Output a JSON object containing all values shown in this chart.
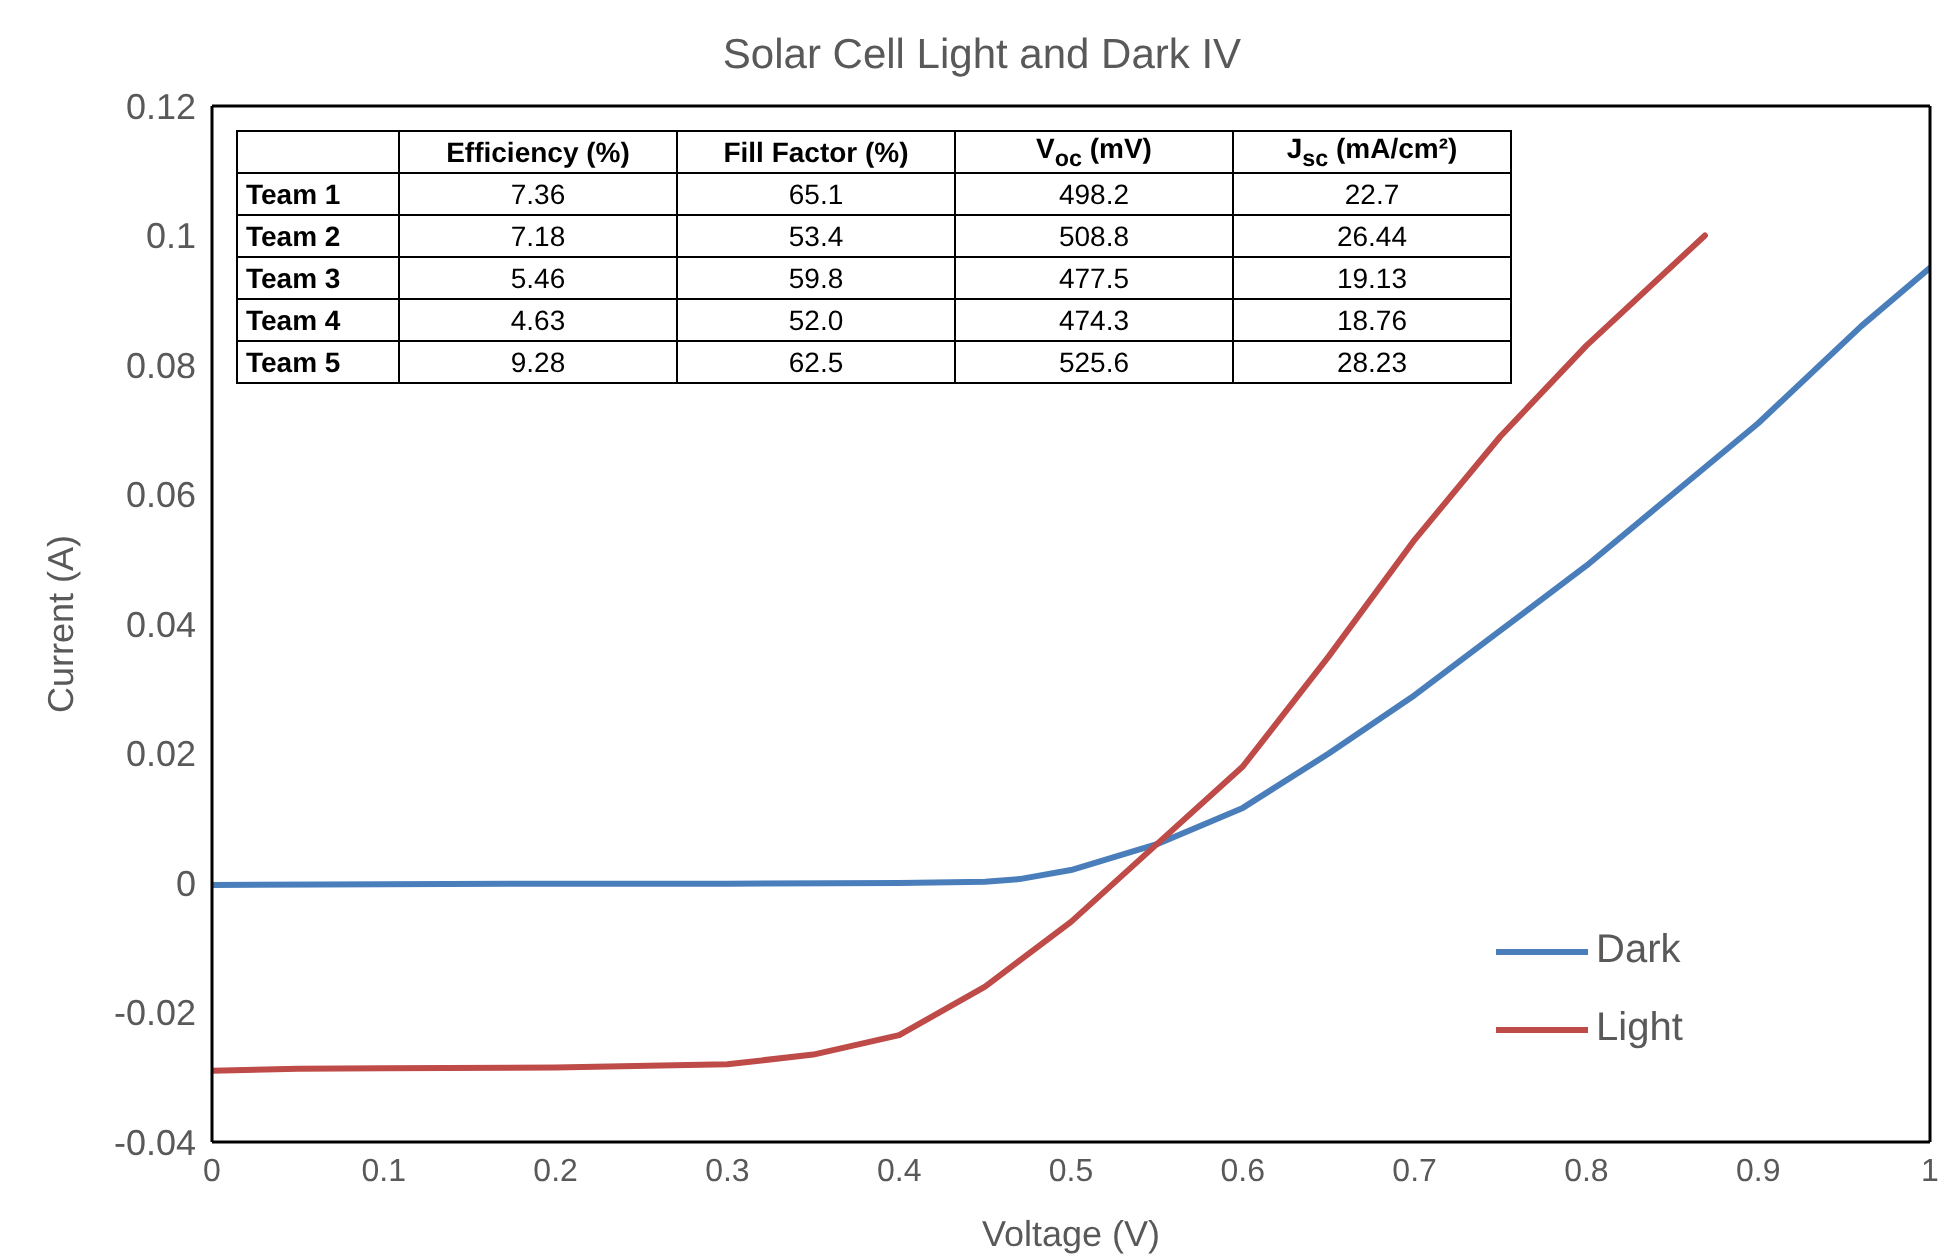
{
  "chart_data": [
    {
      "type": "line",
      "title": "Solar Cell Light and Dark IV",
      "xlabel": "Voltage (V)",
      "ylabel": "Current (A)",
      "xlim": [
        0,
        1
      ],
      "xticks": [
        0,
        0.1,
        0.2,
        0.3,
        0.4,
        0.5,
        0.6,
        0.7,
        0.8,
        0.9,
        1
      ],
      "ylim": [
        -0.04,
        0.12
      ],
      "yticks": [
        -0.04,
        -0.02,
        0,
        0.02,
        0.04,
        0.06,
        0.08,
        0.1,
        0.12
      ],
      "grid": false,
      "legend": "bottom right",
      "marker": "none",
      "line_style": "solid",
      "series": [
        {
          "name": "Dark",
          "color": "#4a7ebb",
          "x": [
            0,
            0.1,
            0.2,
            0.3,
            0.4,
            0.45,
            0.47,
            0.5,
            0.55,
            0.6,
            0.65,
            0.7,
            0.75,
            0.8,
            0.85,
            0.9,
            0.96,
            1
          ],
          "values": [
            -0.0003,
            -0.0002,
            -0.0001,
            -0.0001,
            0,
            0.0002,
            0.0006,
            0.002,
            0.006,
            0.0116,
            0.02,
            0.029,
            0.039,
            0.049,
            0.06,
            0.071,
            0.086,
            0.095
          ]
        },
        {
          "name": "Light",
          "color": "#be4b48",
          "x": [
            0,
            0.05,
            0.1,
            0.2,
            0.3,
            0.35,
            0.4,
            0.45,
            0.5,
            0.55,
            0.6,
            0.65,
            0.7,
            0.75,
            0.8,
            0.869
          ],
          "values": [
            -0.029,
            -0.0287,
            -0.0286,
            -0.0285,
            -0.028,
            -0.0265,
            -0.0235,
            -0.016,
            -0.006,
            0.006,
            0.018,
            0.035,
            0.053,
            0.069,
            0.083,
            0.1
          ]
        }
      ]
    },
    {
      "type": "other",
      "categories": [
        null,
        "Efficiency (%)",
        "Fill Factor (%)",
        "V$_{oc}$ (mV)",
        "J$_{sc}$ (mA/cm²)"
      ],
      "y_categories": [
        "Team 1",
        "Team 2",
        "Team 3",
        "Team 4",
        "Team 5"
      ],
      "cell_labels": [
        [
          "7.36",
          "65.1",
          "498.2",
          "22.7"
        ],
        [
          "7.18",
          "53.4",
          "508.8",
          "26.44"
        ],
        [
          "5.46",
          "59.8",
          "477.5",
          "19.13"
        ],
        [
          "4.63",
          "52.0",
          "474.3",
          "18.76"
        ],
        [
          "9.28",
          "62.5",
          "525.6",
          "28.23"
        ]
      ]
    }
  ]
}
